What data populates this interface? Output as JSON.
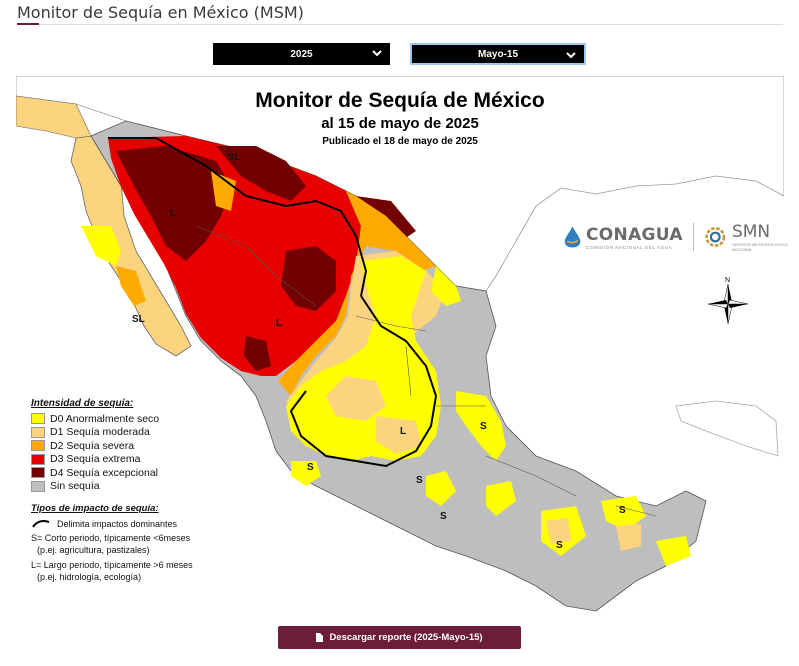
{
  "header": {
    "title": "Monitor de Sequía en México (MSM)"
  },
  "selectors": {
    "year": "2025",
    "date": "Mayo-15"
  },
  "map": {
    "title": "Monitor de Sequía de México",
    "subtitle": "al 15 de mayo de 2025",
    "published": "Publicado el 18 de mayo de 2025",
    "region_labels": [
      "SL",
      "L",
      "SL",
      "L",
      "L",
      "L",
      "S",
      "S",
      "S",
      "S",
      "S",
      "S",
      "S"
    ],
    "compass_label": "N",
    "logos": {
      "conagua": "CONAGUA",
      "conagua_sub": "COMISIÓN NACIONAL DEL AGUA",
      "smn": "SMN",
      "smn_sub": "SERVICIO METEOROLÓGICO NACIONAL"
    }
  },
  "legend": {
    "heading": "Intensidad de sequía:",
    "items": [
      {
        "label": "D0 Anormalmente seco",
        "color": "#ffff00"
      },
      {
        "label": "D1 Sequía moderada",
        "color": "#fcd37f"
      },
      {
        "label": "D2 Sequía severa",
        "color": "#ffaa00"
      },
      {
        "label": "D3 Sequía extrema",
        "color": "#e60000"
      },
      {
        "label": "D4 Sequía excepcional",
        "color": "#730000"
      },
      {
        "label": "Sin sequía",
        "color": "#bebebe"
      }
    ]
  },
  "impacts": {
    "heading": "Tipos de impacto de sequía:",
    "line": "Delimita impactos dominantes",
    "short_1": "S= Corto periodo, típicamente <6meses",
    "short_2": "(p.ej. agricultura, pastizales)",
    "long_1": "L= Largo periodo, típicamente >6 meses",
    "long_2": "(p.ej. hidrología, ecología)"
  },
  "download_button": "Descargar reporte (2025-Mayo-15)",
  "colors": {
    "brand": "#6b1d3a",
    "select_bg": "#000000",
    "no_drought": "#bebebe"
  }
}
